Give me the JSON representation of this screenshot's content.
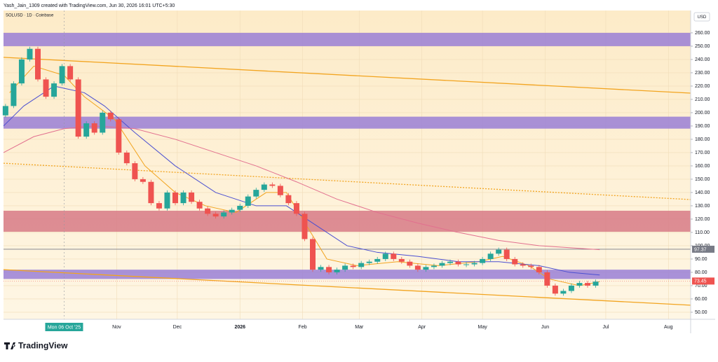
{
  "chart_data": {
    "type": "candlestick",
    "header": "Yash_Jain_1309 created with TradingView.com, Jun 30, 2026 16:01 UTC+5:30",
    "title": "SOLUSD · 1D · Coinbase",
    "currency": "USD",
    "brand": "TradingView",
    "up_color": "#26a69a",
    "down_color": "#ef5350",
    "x": [
      6,
      10,
      14,
      18,
      22,
      26,
      30,
      34,
      38,
      42,
      46,
      50,
      54,
      58,
      62,
      66,
      70,
      74,
      78,
      82,
      86,
      90,
      94,
      98,
      102,
      106,
      110,
      114,
      118,
      122,
      126,
      130,
      134,
      138,
      142,
      146,
      150,
      154,
      158,
      162,
      166,
      170,
      174,
      178,
      182,
      186,
      190,
      194,
      198,
      202,
      206,
      210,
      214,
      218,
      222,
      226,
      230,
      234,
      238,
      242,
      246,
      250,
      254,
      258,
      262,
      266,
      270,
      274,
      278,
      282,
      286,
      290,
      294,
      298
    ],
    "open": [
      198,
      205,
      222,
      240,
      248,
      225,
      212,
      222,
      235,
      225,
      182,
      192,
      185,
      200,
      195,
      170,
      162,
      150,
      148,
      132,
      128,
      140,
      132,
      140,
      133,
      128,
      124,
      122,
      125,
      127,
      130,
      137,
      142,
      146,
      145,
      138,
      132,
      124,
      105,
      82,
      84,
      80,
      82,
      85,
      84,
      87,
      88,
      90,
      94,
      90,
      88,
      85,
      82,
      84,
      85,
      87,
      88,
      86,
      86,
      87,
      90,
      94,
      97,
      90,
      86,
      85,
      84,
      80,
      70,
      64,
      66,
      70,
      72,
      70
    ],
    "close": [
      205,
      222,
      240,
      248,
      225,
      212,
      222,
      235,
      225,
      182,
      192,
      185,
      200,
      195,
      170,
      162,
      150,
      148,
      132,
      128,
      140,
      132,
      140,
      133,
      128,
      124,
      122,
      125,
      127,
      130,
      137,
      142,
      146,
      145,
      138,
      132,
      124,
      105,
      82,
      84,
      80,
      82,
      85,
      84,
      87,
      88,
      90,
      94,
      90,
      88,
      85,
      82,
      84,
      85,
      87,
      88,
      86,
      86,
      87,
      90,
      94,
      97,
      90,
      86,
      85,
      84,
      80,
      70,
      64,
      66,
      70,
      72,
      70,
      73
    ],
    "series": [
      {
        "color": "#f2a41f",
        "x": [
          8,
          20,
          35,
          45,
          60,
          75,
          90,
          105,
          120,
          135,
          145,
          155,
          165,
          180,
          200,
          220,
          240,
          252,
          265,
          275,
          290,
          300
        ],
        "values": [
          215,
          235,
          228,
          212,
          195,
          160,
          140,
          130,
          125,
          140,
          140,
          115,
          90,
          85,
          88,
          85,
          88,
          92,
          85,
          75,
          70,
          73
        ]
      },
      {
        "color": "#4b4fd1",
        "x": [
          5,
          15,
          30,
          45,
          55,
          70,
          90,
          110,
          130,
          145,
          160,
          175,
          190,
          210,
          230,
          250,
          270,
          285,
          300
        ],
        "values": [
          190,
          205,
          220,
          215,
          205,
          185,
          160,
          140,
          130,
          130,
          115,
          100,
          95,
          92,
          88,
          88,
          85,
          80,
          78
        ]
      },
      {
        "color": "#e2708f",
        "x": [
          5,
          20,
          35,
          50,
          70,
          90,
          110,
          130,
          150,
          170,
          190,
          210,
          230,
          250,
          270,
          300
        ],
        "values": [
          170,
          182,
          188,
          190,
          188,
          180,
          170,
          160,
          148,
          135,
          125,
          117,
          110,
          104,
          100,
          97
        ]
      }
    ],
    "zones": [
      {
        "range": [
          250,
          260
        ],
        "color": "#9a7fd6"
      },
      {
        "range": [
          188,
          197
        ],
        "color": "#9a7fd6"
      },
      {
        "range": [
          110.5,
          126.3
        ],
        "color": "#d77a86"
      },
      {
        "range": [
          75,
          82
        ],
        "color": "#9a7fd6"
      }
    ],
    "trendlines": [
      {
        "x": [
          5,
          345
        ],
        "values": [
          241.6,
          214.7
        ],
        "color": "#f2a41f",
        "dash": false
      },
      {
        "x": [
          5,
          345
        ],
        "values": [
          82,
          55.3
        ],
        "color": "#f2a41f",
        "dash": false
      },
      {
        "x": [
          5,
          345
        ],
        "values": [
          162,
          134.7
        ],
        "color": "#f2a41f",
        "dash": true
      }
    ],
    "levels": [
      {
        "value": 97.37,
        "color": "#787b86",
        "line": true
      },
      {
        "value": 73.45,
        "color": "#ef5350",
        "line": false
      }
    ],
    "crosshair": {
      "x": 35,
      "label": "Mon 06 Oct '25"
    },
    "xlim": [
      5,
      345
    ],
    "ylim": [
      44.7,
      276.8
    ],
    "yticks": [
      {
        "value": 50,
        "label": "50.00"
      },
      {
        "value": 60,
        "label": "60.00"
      },
      {
        "value": 70,
        "label": "70.00"
      },
      {
        "value": 80,
        "label": "80.00"
      },
      {
        "value": 90,
        "label": "90.00"
      },
      {
        "value": 100,
        "label": "100.00"
      },
      {
        "value": 110,
        "label": "110.00"
      },
      {
        "value": 120,
        "label": "120.00"
      },
      {
        "value": 130,
        "label": "130.00"
      },
      {
        "value": 140,
        "label": "140.00"
      },
      {
        "value": 150,
        "label": "150.00"
      },
      {
        "value": 160,
        "label": "160.00"
      },
      {
        "value": 170,
        "label": "170.00"
      },
      {
        "value": 180,
        "label": "180.00"
      },
      {
        "value": 190,
        "label": "190.00"
      },
      {
        "value": 200,
        "label": "200.00"
      },
      {
        "value": 210,
        "label": "210.00"
      },
      {
        "value": 220,
        "label": "220.00"
      },
      {
        "value": 230,
        "label": "230.00"
      },
      {
        "value": 240,
        "label": "240.00"
      },
      {
        "value": 250,
        "label": "250.00"
      },
      {
        "value": 260,
        "label": "260.00"
      }
    ],
    "xticks": [
      {
        "value": 61,
        "label": "Nov"
      },
      {
        "value": 91,
        "label": "Dec"
      },
      {
        "value": 122,
        "label": "2026"
      },
      {
        "value": 153,
        "label": "Feb"
      },
      {
        "value": 181,
        "label": "Mar"
      },
      {
        "value": 212,
        "label": "Apr"
      },
      {
        "value": 242,
        "label": "May"
      },
      {
        "value": 273,
        "label": "Jun"
      },
      {
        "value": 303,
        "label": "Jul"
      },
      {
        "value": 334,
        "label": "Aug"
      }
    ],
    "grid": true
  }
}
